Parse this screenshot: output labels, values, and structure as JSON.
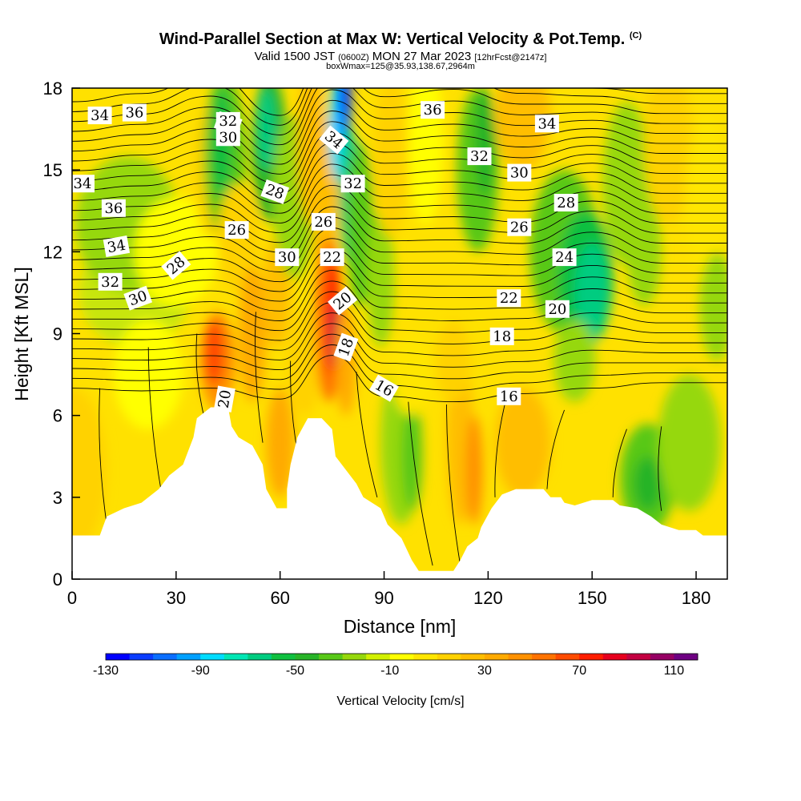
{
  "header": {
    "title": "Wind-Parallel Section at Max W: Vertical Velocity & Pot.Temp.",
    "copyright": "(C)",
    "valid_prefix": "Valid 1500 JST",
    "utc": "(0600Z)",
    "valid_date": "MON 27 Mar 2023",
    "fcst": "[12hrFcst@2147z]",
    "box": "boxWmax=125@35.93,138.67,2964m"
  },
  "chart_data": {
    "type": "heatmap",
    "xlabel": "Distance [nm]",
    "ylabel": "Height [Kft MSL]",
    "xlim": [
      0,
      189
    ],
    "ylim": [
      0,
      18
    ],
    "x_ticks": [
      "0",
      "30",
      "60",
      "90",
      "120",
      "150",
      "180"
    ],
    "y_ticks": [
      "0",
      "3",
      "6",
      "9",
      "12",
      "15",
      "18"
    ],
    "grid": false,
    "colorbar": {
      "label": "Vertical Velocity [cm/s]",
      "placement": "bottom",
      "tick_labels": [
        "-130",
        "-90",
        "-50",
        "-10",
        "30",
        "70",
        "110"
      ],
      "colors": [
        "#0000ff",
        "#0a3cff",
        "#0a6eff",
        "#00a0ff",
        "#00dcff",
        "#00e6b4",
        "#00cc80",
        "#10c040",
        "#28b428",
        "#58c818",
        "#96d80c",
        "#d2f000",
        "#ffff00",
        "#ffe600",
        "#ffd200",
        "#ffbe00",
        "#ffaa00",
        "#ff9100",
        "#ff7300",
        "#ff4b00",
        "#ff1e00",
        "#e6001e",
        "#c30041",
        "#960064",
        "#6e0082"
      ]
    },
    "terrain_kft": [
      [
        0,
        1.6
      ],
      [
        8,
        1.6
      ],
      [
        10,
        2.3
      ],
      [
        15,
        2.6
      ],
      [
        20,
        2.8
      ],
      [
        25,
        3.3
      ],
      [
        28,
        3.8
      ],
      [
        32,
        4.2
      ],
      [
        35,
        5.2
      ],
      [
        36,
        5.9
      ],
      [
        38,
        6.1
      ],
      [
        40,
        6.3
      ],
      [
        45,
        6.3
      ],
      [
        46,
        5.6
      ],
      [
        48,
        5.2
      ],
      [
        52,
        4.9
      ],
      [
        55,
        4.2
      ],
      [
        56,
        3.3
      ],
      [
        59,
        2.6
      ],
      [
        62,
        2.6
      ],
      [
        62,
        3.3
      ],
      [
        63,
        4.2
      ],
      [
        65,
        5.2
      ],
      [
        68,
        5.9
      ],
      [
        72,
        5.9
      ],
      [
        75,
        5.5
      ],
      [
        76,
        4.5
      ],
      [
        79,
        4
      ],
      [
        82,
        3.5
      ],
      [
        84,
        3
      ],
      [
        89,
        2.6
      ],
      [
        91,
        2
      ],
      [
        95,
        1.5
      ],
      [
        98,
        0.7
      ],
      [
        100,
        0.3
      ],
      [
        110,
        0.3
      ],
      [
        112,
        0.7
      ],
      [
        114,
        1.2
      ],
      [
        117,
        1.5
      ],
      [
        118,
        1.9
      ],
      [
        121,
        2.6
      ],
      [
        124,
        3.1
      ],
      [
        128,
        3.3
      ],
      [
        136,
        3.3
      ],
      [
        138,
        3
      ],
      [
        141,
        3
      ],
      [
        142,
        2.8
      ],
      [
        145,
        2.7
      ],
      [
        150,
        2.9
      ],
      [
        156,
        2.9
      ],
      [
        158,
        2.7
      ],
      [
        163,
        2.6
      ],
      [
        167,
        2.3
      ],
      [
        170,
        2
      ],
      [
        175,
        1.8
      ],
      [
        180,
        1.8
      ],
      [
        182,
        1.6
      ],
      [
        189,
        1.6
      ]
    ],
    "contour_labels": [
      "36",
      "34",
      "32",
      "30",
      "28",
      "26",
      "24",
      "22",
      "20",
      "18",
      "16"
    ]
  }
}
